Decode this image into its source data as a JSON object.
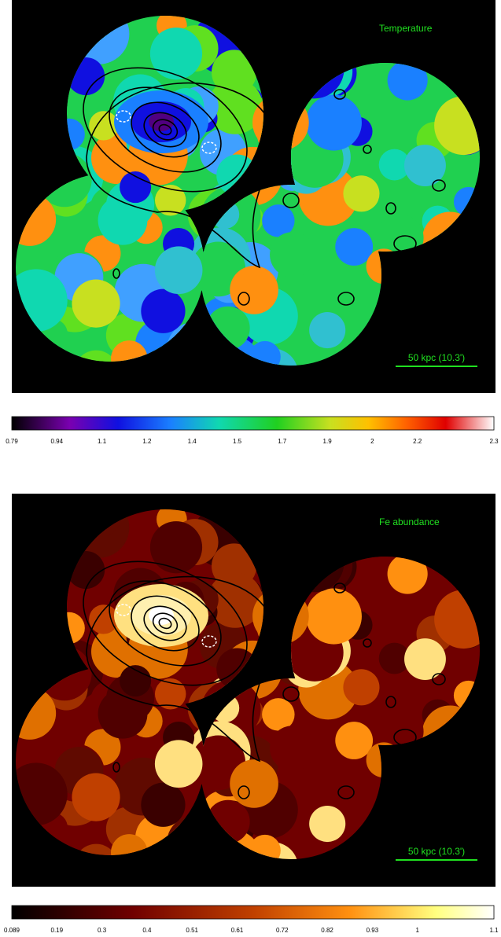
{
  "panels": [
    {
      "label": "Temperature",
      "scale_bar": "50 kpc (10.3')",
      "colorbar_ticks": [
        "0.79",
        "0.94",
        "1.1",
        "1.2",
        "1.4",
        "1.5",
        "1.7",
        "1.9",
        "2",
        "2.2",
        "2.3"
      ]
    },
    {
      "label": "Fe abundance",
      "scale_bar": "50 kpc (10.3')",
      "colorbar_ticks": [
        "0.089",
        "0.19",
        "0.3",
        "0.4",
        "0.51",
        "0.61",
        "0.72",
        "0.82",
        "0.93",
        "1",
        "1.1"
      ]
    }
  ]
}
